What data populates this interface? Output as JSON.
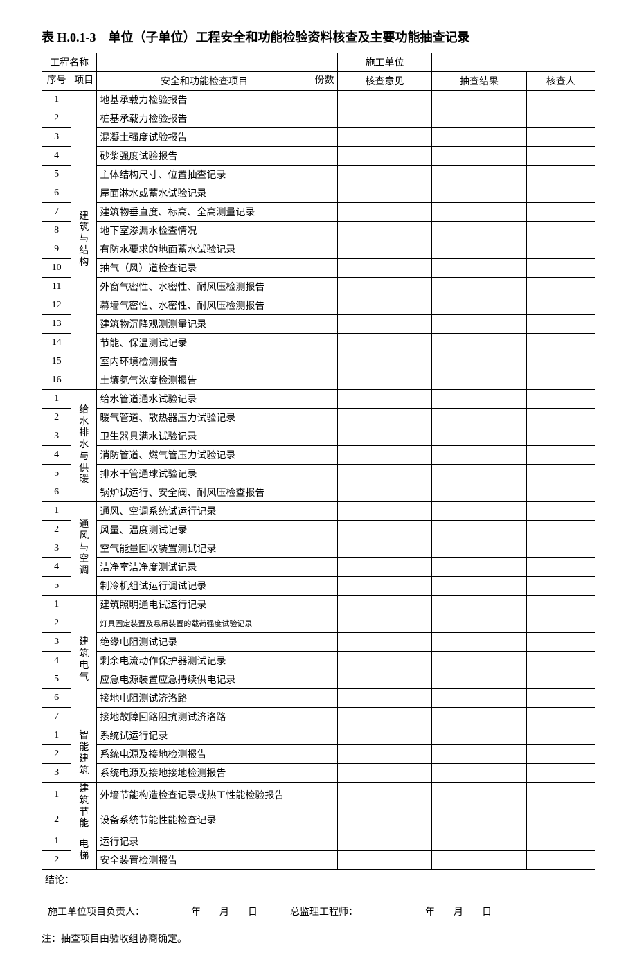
{
  "title": "表 H.0.1-3　单位（子单位）工程安全和功能检验资料核查及主要功能抽查记录",
  "header": {
    "project_name_label": "工程名称",
    "project_name_value": "",
    "contractor_label": "施工单位",
    "contractor_value": ""
  },
  "columns": {
    "seq": "序号",
    "project": "项目",
    "item": "安全和功能检查项目",
    "copies": "份数",
    "opinion": "核查意见",
    "result": "抽查结果",
    "checker": "核查人"
  },
  "groups": [
    {
      "name": "建筑与结构",
      "name_vertical": "建\n筑\n与\n结\n构",
      "rows": [
        {
          "n": "1",
          "item": "地基承载力检验报告"
        },
        {
          "n": "2",
          "item": "桩基承载力检验报告"
        },
        {
          "n": "3",
          "item": "混凝土强度试验报告"
        },
        {
          "n": "4",
          "item": "砂浆强度试验报告"
        },
        {
          "n": "5",
          "item": "主体结构尺寸、位置抽查记录"
        },
        {
          "n": "6",
          "item": "屋面淋水或蓄水试验记录"
        },
        {
          "n": "7",
          "item": "建筑物垂直度、标高、全高测量记录"
        },
        {
          "n": "8",
          "item": "地下室渗漏水检查情况"
        },
        {
          "n": "9",
          "item": "有防水要求的地面蓄水试验记录"
        },
        {
          "n": "10",
          "item": "抽气（风）道检查记录"
        },
        {
          "n": "11",
          "item": "外窗气密性、水密性、耐风压检测报告"
        },
        {
          "n": "12",
          "item": "幕墙气密性、水密性、耐风压检测报告"
        },
        {
          "n": "13",
          "item": "建筑物沉降观测测量记录"
        },
        {
          "n": "14",
          "item": "节能、保温测试记录"
        },
        {
          "n": "15",
          "item": "室内环境检测报告"
        },
        {
          "n": "16",
          "item": "土壤氡气浓度检测报告"
        }
      ]
    },
    {
      "name": "给水排水与供暖",
      "name_vertical": "给\n水\n排\n水\n与\n供\n暖",
      "rows": [
        {
          "n": "1",
          "item": "给水管道通水试验记录"
        },
        {
          "n": "2",
          "item": "暖气管道、散热器压力试验记录"
        },
        {
          "n": "3",
          "item": "卫生器具满水试验记录"
        },
        {
          "n": "4",
          "item": "消防管道、燃气管压力试验记录"
        },
        {
          "n": "5",
          "item": "排水干管通球试验记录"
        },
        {
          "n": "6",
          "item": "锅炉试运行、安全阀、耐风压检查报告"
        }
      ]
    },
    {
      "name": "通风与空调",
      "name_vertical": "通\n风\n与\n空\n调",
      "rows": [
        {
          "n": "1",
          "item": "通风、空调系统试运行记录"
        },
        {
          "n": "2",
          "item": "风量、温度测试记录"
        },
        {
          "n": "3",
          "item": "空气能量回收装置测试记录"
        },
        {
          "n": "4",
          "item": "洁净室洁净度测试记录"
        },
        {
          "n": "5",
          "item": "制冷机组试运行调试记录"
        }
      ]
    },
    {
      "name": "建筑电气",
      "name_vertical": "建\n筑\n电\n气",
      "rows": [
        {
          "n": "1",
          "item": "建筑照明通电试运行记录"
        },
        {
          "n": "2",
          "item": "灯具固定装置及悬吊装置的载荷强度试验记录",
          "small": true
        },
        {
          "n": "3",
          "item": "绝缘电阻测试记录"
        },
        {
          "n": "4",
          "item": "剩余电流动作保护器测试记录"
        },
        {
          "n": "5",
          "item": "应急电源装置应急持续供电记录"
        },
        {
          "n": "6",
          "item": "接地电阻测试济洛路"
        },
        {
          "n": "7",
          "item": "接地故障回路阻抗测试济洛路"
        }
      ]
    },
    {
      "name": "智能建筑",
      "name_vertical": "智\n能\n建\n筑",
      "rows": [
        {
          "n": "1",
          "item": "系统试运行记录"
        },
        {
          "n": "2",
          "item": "系统电源及接地检测报告"
        },
        {
          "n": "3",
          "item": "系统电源及接地接地检测报告"
        }
      ]
    },
    {
      "name": "建筑节能",
      "name_vertical": "建\n筑\n节\n能",
      "rows": [
        {
          "n": "1",
          "item": "外墙节能构造检查记录或热工性能检验报告"
        },
        {
          "n": "2",
          "item": "设备系统节能性能检查记录"
        }
      ]
    },
    {
      "name": "电梯",
      "name_vertical": "电\n梯",
      "rows": [
        {
          "n": "1",
          "item": "运行记录"
        },
        {
          "n": "2",
          "item": "安全装置检测报告"
        }
      ]
    }
  ],
  "footer": {
    "conclusion_label": "结论：",
    "left_sign": "施工单位项目负责人：",
    "right_sign": "总监理工程师：",
    "date_y": "年",
    "date_m": "月",
    "date_d": "日"
  },
  "note": "注：抽查项目由验收组协商确定。"
}
